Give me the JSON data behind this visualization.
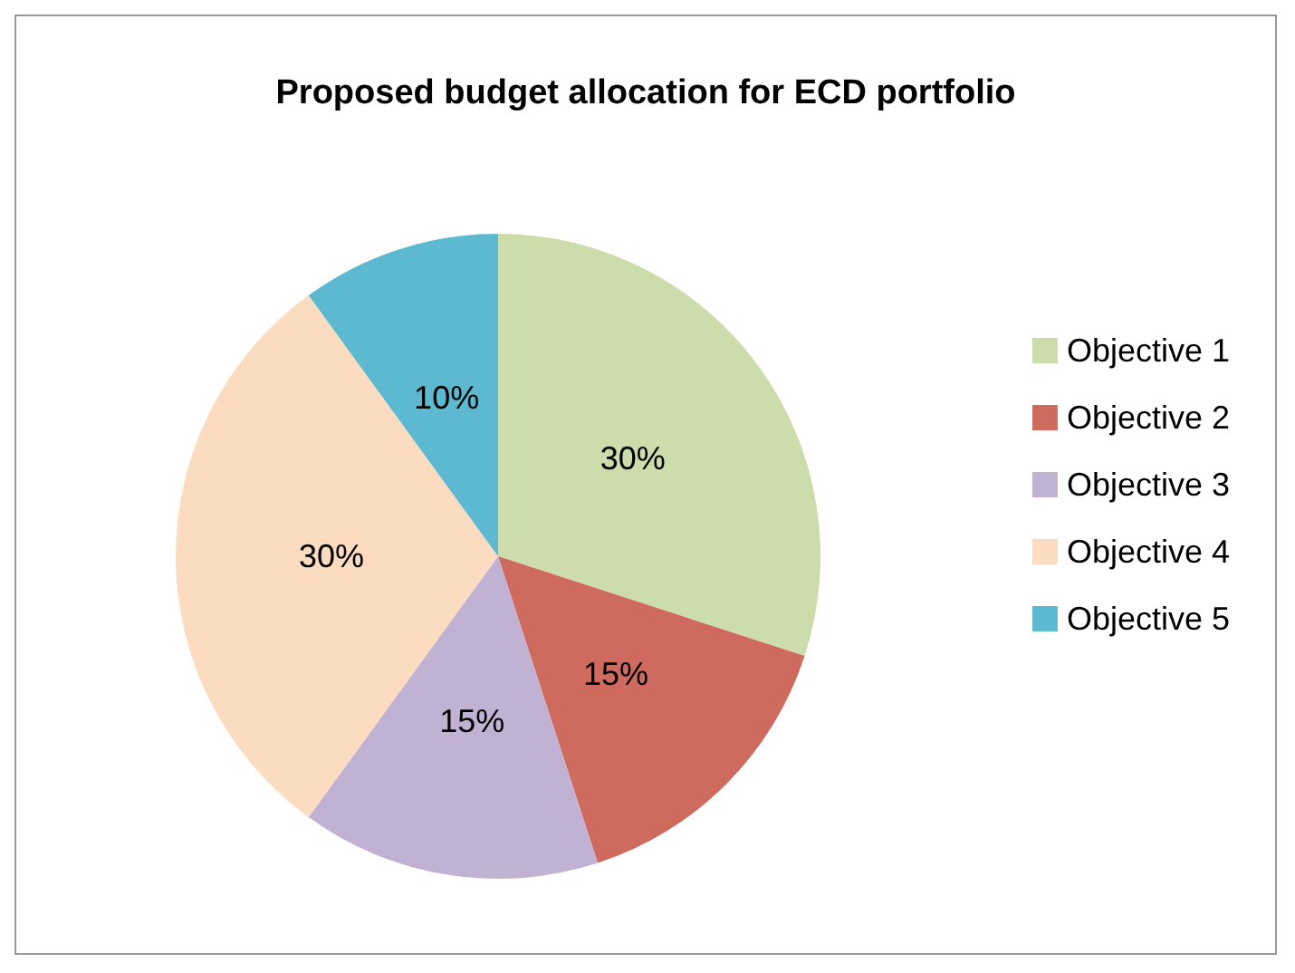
{
  "chart_data": {
    "type": "pie",
    "title": "Proposed budget allocation for ECD portfolio",
    "categories": [
      "Objective 1",
      "Objective 2",
      "Objective 3",
      "Objective 4",
      "Objective 5"
    ],
    "values": [
      30,
      15,
      15,
      30,
      10
    ],
    "value_labels": [
      "30%",
      "15%",
      "15%",
      "30%",
      "10%"
    ],
    "colors": [
      "#cddcab",
      "#cf6a5f",
      "#c1b2d4",
      "#fbdcc0",
      "#5db9d0"
    ],
    "legend": "right"
  }
}
